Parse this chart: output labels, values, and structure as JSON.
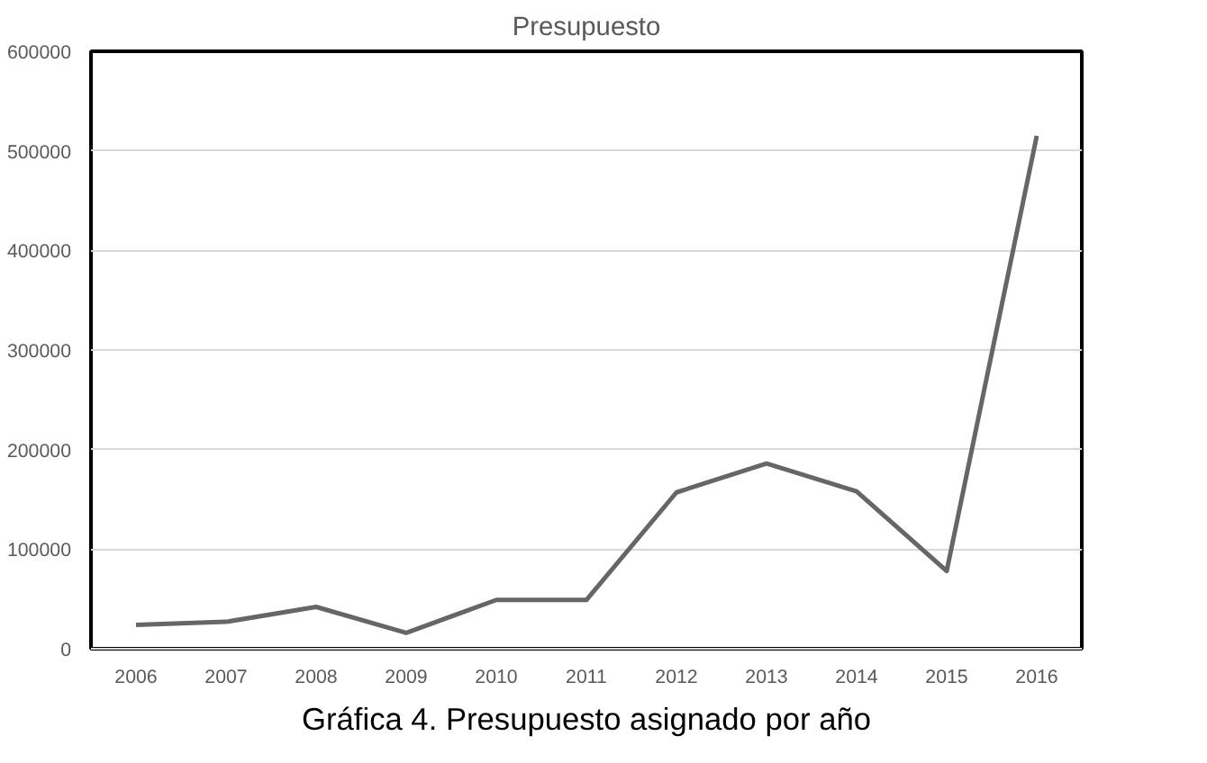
{
  "chart_data": {
    "type": "line",
    "title": "Presupuesto",
    "categories": [
      "2006",
      "2007",
      "2008",
      "2009",
      "2010",
      "2011",
      "2012",
      "2013",
      "2014",
      "2015",
      "2016"
    ],
    "series": [
      {
        "color": "#666666",
        "values": [
          24000,
          27000,
          42000,
          16000,
          49000,
          49000,
          157000,
          186000,
          158000,
          78000,
          515000
        ]
      }
    ],
    "ylim": [
      0,
      600000
    ],
    "yticks": [
      0,
      100000,
      200000,
      300000,
      400000,
      500000,
      600000
    ],
    "grid": "y",
    "line_style": "solid",
    "annotations": [
      "Gráfica 4. Presupuesto asignado por año"
    ]
  }
}
